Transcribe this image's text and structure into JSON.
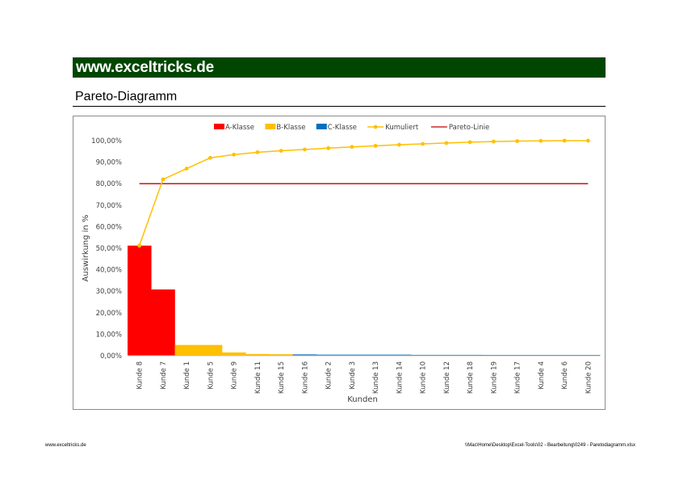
{
  "header": {
    "site": "www.exceltricks.de",
    "section_title": "Pareto-Diagramm"
  },
  "footer": {
    "left": "www.exceltricks.de",
    "right": "\\\\Mac\\Home\\Desktop\\Excel-Tools\\02 - Bearbeitung\\0249 - Paretodiagramm.xlsx"
  },
  "colors": {
    "banner": "#004600",
    "a": "#ff0000",
    "b": "#ffc000",
    "c": "#0070c0",
    "cumulative": "#ffc000",
    "pareto": "#c00000"
  },
  "chart_data": {
    "type": "bar",
    "xlabel": "Kunden",
    "ylabel": "Auswirkung in %",
    "ylim": [
      0,
      100
    ],
    "yticks": [
      "0,00%",
      "10,00%",
      "20,00%",
      "30,00%",
      "40,00%",
      "50,00%",
      "60,00%",
      "70,00%",
      "80,00%",
      "90,00%",
      "100,00%"
    ],
    "categories": [
      "Kunde 8",
      "Kunde 7",
      "Kunde 1",
      "Kunde 5",
      "Kunde 9",
      "Kunde 11",
      "Kunde 15",
      "Kunde 16",
      "Kunde 2",
      "Kunde 3",
      "Kunde 13",
      "Kunde 14",
      "Kunde 10",
      "Kunde 12",
      "Kunde 18",
      "Kunde 19",
      "Kunde 17",
      "Kunde 4",
      "Kunde 6",
      "Kunde 20"
    ],
    "classes": [
      "A",
      "A",
      "B",
      "B",
      "B",
      "B",
      "B",
      "C",
      "C",
      "C",
      "C",
      "C",
      "C",
      "C",
      "C",
      "C",
      "C",
      "C",
      "C",
      "C"
    ],
    "series": [
      {
        "name": "A-Klasse",
        "values": [
          51.2,
          30.8,
          null,
          null,
          null,
          null,
          null,
          null,
          null,
          null,
          null,
          null,
          null,
          null,
          null,
          null,
          null,
          null,
          null,
          null
        ]
      },
      {
        "name": "B-Klasse",
        "values": [
          null,
          null,
          5.0,
          5.0,
          1.5,
          0.8,
          0.7,
          null,
          null,
          null,
          null,
          null,
          null,
          null,
          null,
          null,
          null,
          null,
          null,
          null
        ]
      },
      {
        "name": "C-Klasse",
        "values": [
          null,
          null,
          null,
          null,
          null,
          null,
          null,
          0.6,
          0.5,
          0.5,
          0.5,
          0.5,
          0.4,
          0.4,
          0.4,
          0.3,
          0.2,
          0.1,
          0.1,
          0.1
        ]
      },
      {
        "name": "Kumuliert",
        "values": [
          51.2,
          82.0,
          87.0,
          92.0,
          93.5,
          94.6,
          95.3,
          95.9,
          96.5,
          97.1,
          97.6,
          98.1,
          98.5,
          98.9,
          99.3,
          99.6,
          99.8,
          99.9,
          100.0,
          100.0
        ]
      },
      {
        "name": "Pareto-Linie",
        "values": [
          80,
          80,
          80,
          80,
          80,
          80,
          80,
          80,
          80,
          80,
          80,
          80,
          80,
          80,
          80,
          80,
          80,
          80,
          80,
          80
        ]
      }
    ],
    "legend_position": "top",
    "grid": false
  }
}
